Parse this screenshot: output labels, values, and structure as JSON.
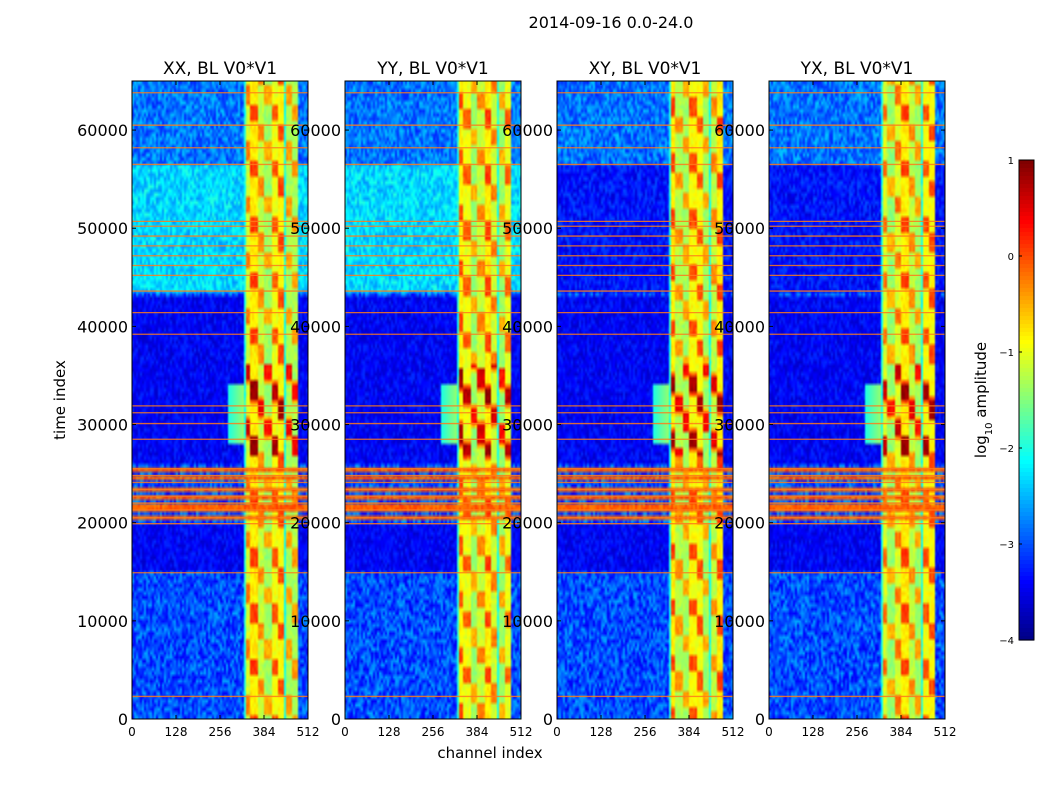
{
  "chart_data": {
    "type": "heatmap",
    "title": "2014-09-16 0.0-24.0",
    "xlabel": "channel index",
    "ylabel": "time index",
    "colorbar_label_prefix": "log",
    "colorbar_label_sub": "10",
    "colorbar_label_suffix": " amplitude",
    "xlim": [
      0,
      512
    ],
    "ylim": [
      0,
      65000
    ],
    "x_ticks": [
      0,
      128,
      256,
      384,
      512
    ],
    "x_tick_labels": [
      "0",
      "128",
      "256",
      "384",
      "512"
    ],
    "y_ticks": [
      0,
      10000,
      20000,
      30000,
      40000,
      50000,
      60000
    ],
    "y_tick_labels": [
      "0",
      "10000",
      "20000",
      "30000",
      "40000",
      "50000",
      "60000"
    ],
    "colorbar": {
      "range": [
        -4,
        1
      ],
      "ticks": [
        -4,
        -3,
        -2,
        -1,
        0,
        1
      ],
      "tick_labels": [
        "−4",
        "−3",
        "−2",
        "−1",
        "0",
        "1"
      ],
      "colormap": "jet"
    },
    "panels": [
      {
        "name": "XX",
        "title": "XX, BL V0*V1",
        "parallel_hand": true
      },
      {
        "name": "YY",
        "title": "YY, BL V0*V1",
        "parallel_hand": true
      },
      {
        "name": "XY",
        "title": "XY, BL V0*V1",
        "parallel_hand": false
      },
      {
        "name": "YX",
        "title": "YX, BL V0*V1",
        "parallel_hand": false
      }
    ],
    "signal_band_channels": [
      325,
      485
    ],
    "flagged_time_rows": [
      2300,
      14900,
      19900,
      20500,
      21300,
      22000,
      22700,
      23400,
      24100,
      24800,
      25500,
      28500,
      30100,
      31200,
      31900,
      39200,
      41400,
      43600,
      45200,
      46200,
      47200,
      48200,
      49200,
      50200,
      50700,
      56500,
      58200,
      60500,
      63800
    ]
  }
}
